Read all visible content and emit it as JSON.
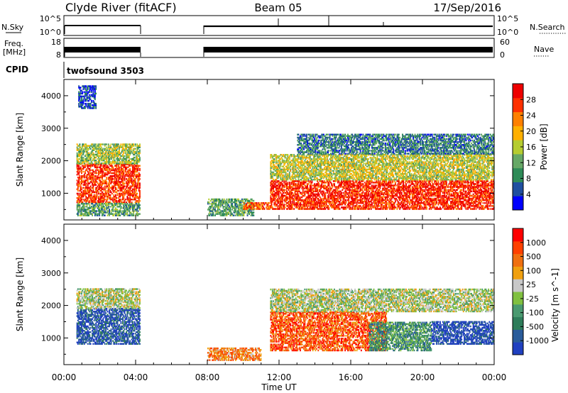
{
  "header": {
    "station": "Clyde River (fitACF)",
    "beam": "Beam 05",
    "date": "17/Sep/2016"
  },
  "status_panels": {
    "nsky_label": "N.Sky",
    "nsearch_label": "N.Search",
    "freq_label_1": "Freq.",
    "freq_label_2": "[MHz]",
    "nave_label": "Nave",
    "cpid_label": "CPID",
    "cpid_value": "twofsound 3503",
    "noise_left_ticks": [
      "10^5",
      "10^0"
    ],
    "noise_right_ticks": [
      "10^5",
      "10^0"
    ],
    "freq_left_ticks": [
      "18",
      "8"
    ],
    "nave_right_ticks": [
      "60",
      "0"
    ]
  },
  "colors": {
    "power": [
      "#0000ff",
      "#1f4fa0",
      "#2e8b57",
      "#66a866",
      "#b5cc30",
      "#ffb000",
      "#ff8000",
      "#ff3000",
      "#ee0000"
    ],
    "velocity": [
      "#2040c0",
      "#2a5c9a",
      "#2e7d5a",
      "#4a9a70",
      "#80c040",
      "#c8c8c8",
      "#f0a010",
      "#f07010",
      "#ff4000",
      "#ff0000"
    ],
    "background": "#ffffff"
  },
  "chart_data": [
    {
      "type": "heatmap",
      "panel": "power",
      "ylabel": "Slant Range [km]",
      "y_ticks": [
        "1000",
        "2000",
        "3000",
        "4000"
      ],
      "ylim": [
        180,
        4500
      ],
      "xlim": [
        0,
        24
      ],
      "colorbar_label": "Power [dB]",
      "colorbar_ticks": [
        "4",
        "8",
        "12",
        "16",
        "20",
        "24",
        "28"
      ],
      "colorbar_range": [
        0,
        32
      ],
      "regions": [
        {
          "t0": 0.7,
          "t1": 4.2,
          "r0": 700,
          "r1": 1900,
          "level": 0.85
        },
        {
          "t0": 0.7,
          "t1": 4.2,
          "r0": 1900,
          "r1": 2500,
          "level": 0.45
        },
        {
          "t0": 0.7,
          "t1": 4.2,
          "r0": 300,
          "r1": 700,
          "level": 0.35
        },
        {
          "t0": 8.0,
          "t1": 10.6,
          "r0": 300,
          "r1": 800,
          "level": 0.35
        },
        {
          "t0": 10.0,
          "t1": 11.6,
          "r0": 500,
          "r1": 700,
          "level": 0.8
        },
        {
          "t0": 11.5,
          "t1": 24.0,
          "r0": 500,
          "r1": 1400,
          "level": 0.88
        },
        {
          "t0": 11.5,
          "t1": 24.0,
          "r0": 1400,
          "r1": 2200,
          "level": 0.5
        },
        {
          "t0": 13.0,
          "t1": 24.0,
          "r0": 2200,
          "r1": 2800,
          "level": 0.25
        },
        {
          "t0": 0.8,
          "t1": 1.8,
          "r0": 3600,
          "r1": 4300,
          "level": 0.15
        }
      ]
    },
    {
      "type": "heatmap",
      "panel": "velocity",
      "ylabel": "Slant Range [km]",
      "y_ticks": [
        "1000",
        "2000",
        "3000",
        "4000"
      ],
      "ylim": [
        180,
        4500
      ],
      "xlim": [
        0,
        24
      ],
      "colorbar_label": "Velocity [m s^-1]",
      "colorbar_ticks": [
        "1000",
        "500",
        "100",
        "25",
        "-25",
        "-100",
        "-500",
        "-1000"
      ],
      "regions": [
        {
          "t0": 0.7,
          "t1": 4.2,
          "r0": 800,
          "r1": 1900,
          "level": 0.1
        },
        {
          "t0": 0.7,
          "t1": 4.2,
          "r0": 1900,
          "r1": 2500,
          "level": 0.5
        },
        {
          "t0": 8.0,
          "t1": 11.0,
          "r0": 300,
          "r1": 700,
          "level": 0.72
        },
        {
          "t0": 11.5,
          "t1": 18.0,
          "r0": 600,
          "r1": 1800,
          "level": 0.82
        },
        {
          "t0": 11.5,
          "t1": 24.0,
          "r0": 1800,
          "r1": 2500,
          "level": 0.5
        },
        {
          "t0": 17.0,
          "t1": 20.5,
          "r0": 600,
          "r1": 1500,
          "level": 0.3
        },
        {
          "t0": 20.5,
          "t1": 24.0,
          "r0": 800,
          "r1": 1500,
          "level": 0.05
        }
      ]
    }
  ],
  "x_axis": {
    "label": "Time UT",
    "ticks": [
      "00:00",
      "04:00",
      "08:00",
      "12:00",
      "16:00",
      "20:00",
      "00:00"
    ]
  }
}
